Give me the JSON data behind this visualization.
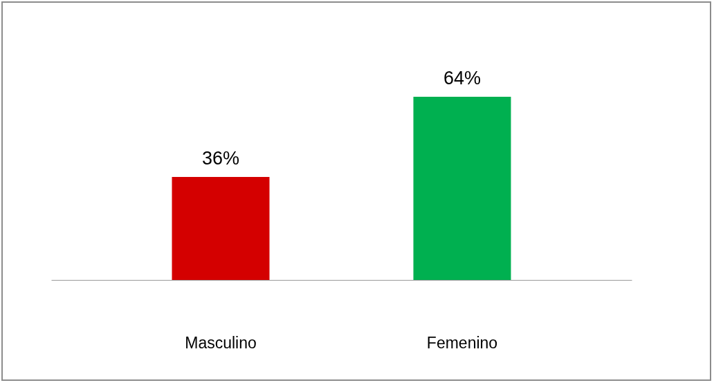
{
  "chart_data": {
    "type": "bar",
    "categories": [
      "Masculino",
      "Femenino"
    ],
    "values": [
      36,
      64
    ],
    "colors": [
      "#d40000",
      "#00b050"
    ],
    "value_labels": [
      "36%",
      "64%"
    ]
  }
}
